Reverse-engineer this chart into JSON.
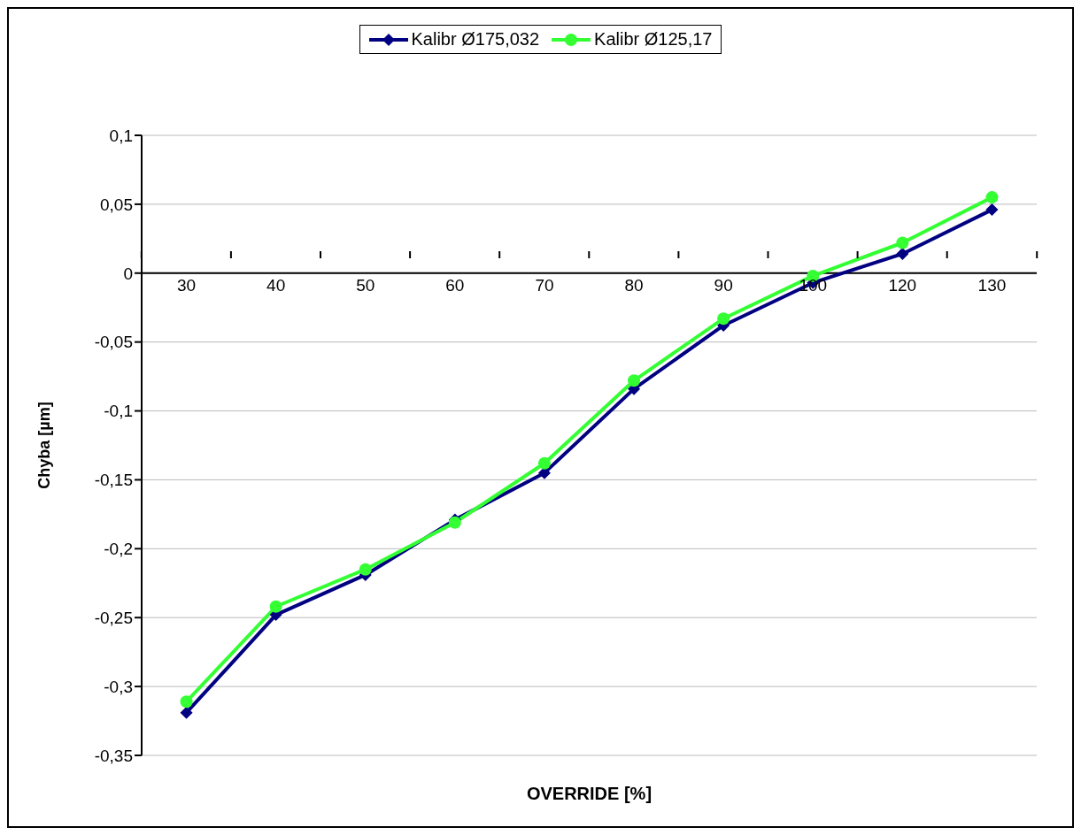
{
  "chart_data": {
    "type": "line",
    "xlabel": "OVERRIDE [%]",
    "ylabel": "Chyba [µm]",
    "categories": [
      "30",
      "40",
      "50",
      "60",
      "70",
      "80",
      "90",
      "100",
      "120",
      "130"
    ],
    "series": [
      {
        "name": "Kalibr Ø175,032",
        "color": "#000080",
        "marker": "diamond",
        "values": [
          -0.319,
          -0.248,
          -0.219,
          -0.179,
          -0.145,
          -0.084,
          -0.038,
          -0.007,
          0.014,
          0.046
        ]
      },
      {
        "name": "Kalibr Ø125,17",
        "color": "#33ff33",
        "marker": "circle",
        "values": [
          -0.311,
          -0.242,
          -0.215,
          -0.181,
          -0.138,
          -0.078,
          -0.033,
          -0.002,
          0.022,
          0.055
        ]
      }
    ],
    "ylim": [
      -0.35,
      0.1
    ],
    "yticks": [
      {
        "value": -0.35,
        "label": "-0,35"
      },
      {
        "value": -0.3,
        "label": "-0,3"
      },
      {
        "value": -0.25,
        "label": "-0,25"
      },
      {
        "value": -0.2,
        "label": "-0,2"
      },
      {
        "value": -0.15,
        "label": "-0,15"
      },
      {
        "value": -0.1,
        "label": "-0,1"
      },
      {
        "value": -0.05,
        "label": "-0,05"
      },
      {
        "value": 0,
        "label": "0"
      },
      {
        "value": 0.05,
        "label": "0,05"
      },
      {
        "value": 0.1,
        "label": "0,1"
      }
    ],
    "grid": "y",
    "legend": "top",
    "line_style": "solid"
  }
}
